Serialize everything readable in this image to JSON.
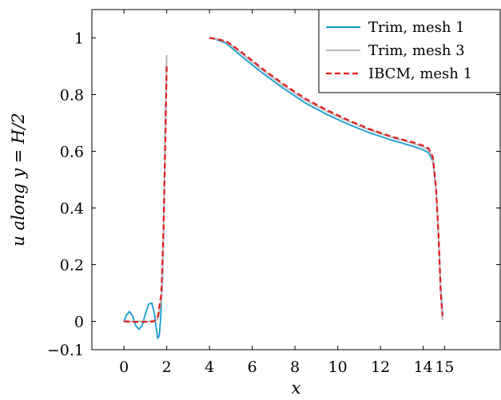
{
  "chart_data": {
    "type": "line",
    "xlabel": "x",
    "ylabel": "u along y = H/2",
    "xlim": [
      -1.5,
      17.6
    ],
    "ylim": [
      -0.1,
      1.1
    ],
    "xticks": [
      {
        "value": 0,
        "label": "0"
      },
      {
        "value": 2,
        "label": "2"
      },
      {
        "value": 4,
        "label": "4"
      },
      {
        "value": 6,
        "label": "6"
      },
      {
        "value": 8,
        "label": "8"
      },
      {
        "value": 10,
        "label": "10"
      },
      {
        "value": 12,
        "label": "12"
      },
      {
        "value": 14,
        "label": "14"
      },
      {
        "value": 15,
        "label": "15"
      }
    ],
    "yticks": [
      {
        "value": -0.1,
        "label": "−0.1"
      },
      {
        "value": 0,
        "label": "0"
      },
      {
        "value": 0.2,
        "label": "0.2"
      },
      {
        "value": 0.4,
        "label": "0.4"
      },
      {
        "value": 0.6,
        "label": "0.6"
      },
      {
        "value": 0.8,
        "label": "0.8"
      },
      {
        "value": 1,
        "label": "1"
      }
    ],
    "grid": false,
    "legend_position": "top-right",
    "series": [
      {
        "name": "Trim, mesh 1",
        "color": "#179bd0",
        "dash": "solid",
        "segments": [
          [
            [
              0,
              0
            ],
            [
              0.1,
              0.02
            ],
            [
              0.25,
              0.035
            ],
            [
              0.4,
              0.02
            ],
            [
              0.55,
              -0.015
            ],
            [
              0.7,
              -0.028
            ],
            [
              0.85,
              -0.015
            ],
            [
              1.0,
              0.025
            ],
            [
              1.15,
              0.06
            ],
            [
              1.3,
              0.065
            ],
            [
              1.42,
              0.03
            ],
            [
              1.5,
              -0.02
            ],
            [
              1.58,
              -0.06
            ],
            [
              1.65,
              -0.05
            ],
            [
              1.72,
              0.01
            ],
            [
              1.8,
              0.15
            ],
            [
              1.87,
              0.4
            ],
            [
              1.93,
              0.7
            ],
            [
              2.0,
              0.93
            ]
          ],
          [
            [
              4.0,
              1.0
            ],
            [
              4.3,
              0.995
            ],
            [
              4.8,
              0.98
            ],
            [
              5.5,
              0.935
            ],
            [
              6.5,
              0.875
            ],
            [
              7.5,
              0.82
            ],
            [
              8.5,
              0.77
            ],
            [
              9.5,
              0.73
            ],
            [
              10.5,
              0.695
            ],
            [
              11.5,
              0.665
            ],
            [
              12.5,
              0.64
            ],
            [
              13.5,
              0.618
            ],
            [
              14.0,
              0.605
            ],
            [
              14.25,
              0.595
            ],
            [
              14.45,
              0.565
            ],
            [
              14.6,
              0.46
            ],
            [
              14.72,
              0.3
            ],
            [
              14.82,
              0.12
            ],
            [
              14.9,
              0.03
            ]
          ]
        ]
      },
      {
        "name": "Trim, mesh 3",
        "color": "#bdbdbd",
        "dash": "solid",
        "segments": [
          [
            [
              0,
              0
            ],
            [
              0.5,
              0
            ],
            [
              1.0,
              0
            ],
            [
              1.4,
              0
            ],
            [
              1.6,
              0.01
            ],
            [
              1.75,
              0.08
            ],
            [
              1.85,
              0.3
            ],
            [
              1.93,
              0.65
            ],
            [
              2.0,
              0.94
            ]
          ],
          [
            [
              4.0,
              1.0
            ],
            [
              4.3,
              0.997
            ],
            [
              4.8,
              0.985
            ],
            [
              5.5,
              0.945
            ],
            [
              6.5,
              0.885
            ],
            [
              7.5,
              0.83
            ],
            [
              8.5,
              0.78
            ],
            [
              9.5,
              0.74
            ],
            [
              10.5,
              0.705
            ],
            [
              11.5,
              0.675
            ],
            [
              12.5,
              0.65
            ],
            [
              13.5,
              0.628
            ],
            [
              14.0,
              0.615
            ],
            [
              14.25,
              0.605
            ],
            [
              14.45,
              0.575
            ],
            [
              14.6,
              0.47
            ],
            [
              14.72,
              0.3
            ],
            [
              14.82,
              0.1
            ],
            [
              14.9,
              0.005
            ]
          ]
        ]
      },
      {
        "name": "IBCM, mesh 1",
        "color": "#e41a1c",
        "dash": "dashed",
        "segments": [
          [
            [
              0,
              0
            ],
            [
              0.5,
              -0.002
            ],
            [
              1.0,
              -0.002
            ],
            [
              1.4,
              0
            ],
            [
              1.6,
              0.02
            ],
            [
              1.75,
              0.1
            ],
            [
              1.85,
              0.32
            ],
            [
              1.93,
              0.62
            ],
            [
              2.0,
              0.9
            ]
          ],
          [
            [
              4.0,
              1.0
            ],
            [
              4.3,
              0.997
            ],
            [
              4.8,
              0.988
            ],
            [
              5.5,
              0.95
            ],
            [
              6.5,
              0.89
            ],
            [
              7.5,
              0.835
            ],
            [
              8.5,
              0.785
            ],
            [
              9.5,
              0.745
            ],
            [
              10.5,
              0.71
            ],
            [
              11.5,
              0.678
            ],
            [
              12.5,
              0.652
            ],
            [
              13.5,
              0.632
            ],
            [
              14.0,
              0.62
            ],
            [
              14.25,
              0.61
            ],
            [
              14.45,
              0.58
            ],
            [
              14.6,
              0.47
            ],
            [
              14.72,
              0.3
            ],
            [
              14.82,
              0.1
            ],
            [
              14.9,
              0.02
            ]
          ]
        ]
      }
    ]
  }
}
